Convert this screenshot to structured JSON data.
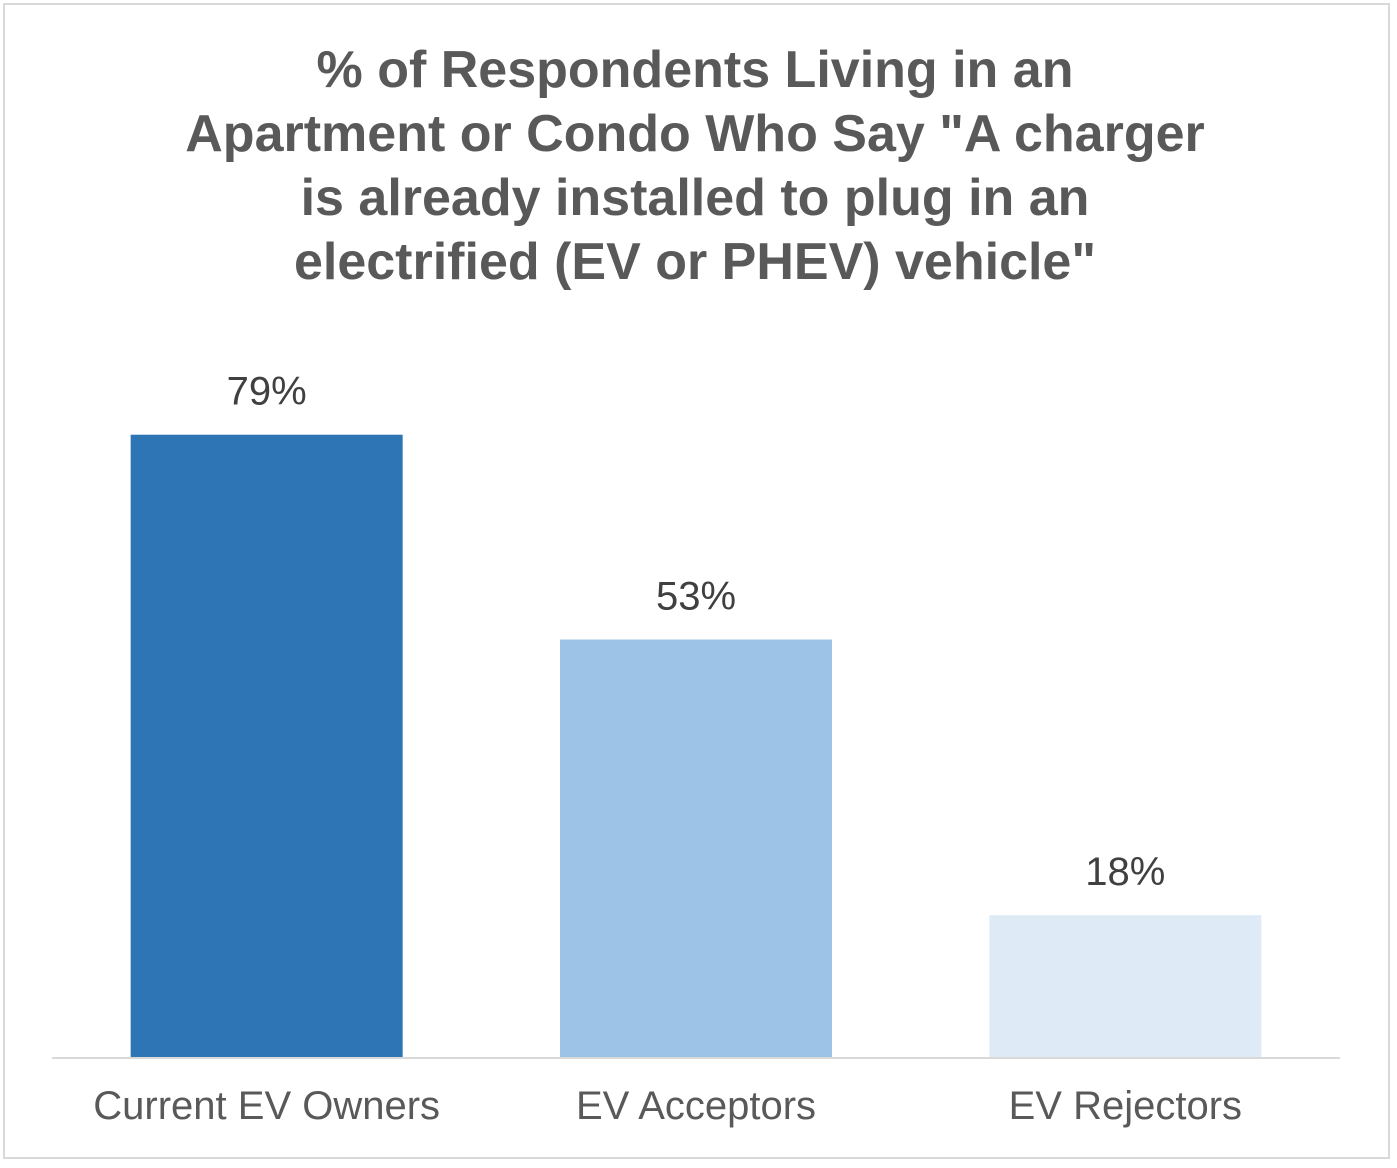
{
  "chart_data": {
    "type": "bar",
    "title": "% of Respondents Living in an Apartment or Condo Who Say \"A charger is already installed to plug in an electrified (EV or PHEV) vehicle\"",
    "title_lines": [
      "% of Respondents Living in an",
      "Apartment or Condo Who Say \"A charger",
      "is already installed to plug in an",
      "electrified (EV or PHEV) vehicle\""
    ],
    "categories": [
      "Current EV Owners",
      "EV Acceptors",
      "EV Rejectors"
    ],
    "values": [
      79,
      53,
      18
    ],
    "data_labels": [
      "79%",
      "53%",
      "18%"
    ],
    "bar_colors": [
      "#2e75b6",
      "#9dc3e6",
      "#deebf7"
    ],
    "xlabel": "",
    "ylabel": "",
    "ylim": [
      0,
      100
    ],
    "grid": false,
    "legend": "none"
  }
}
